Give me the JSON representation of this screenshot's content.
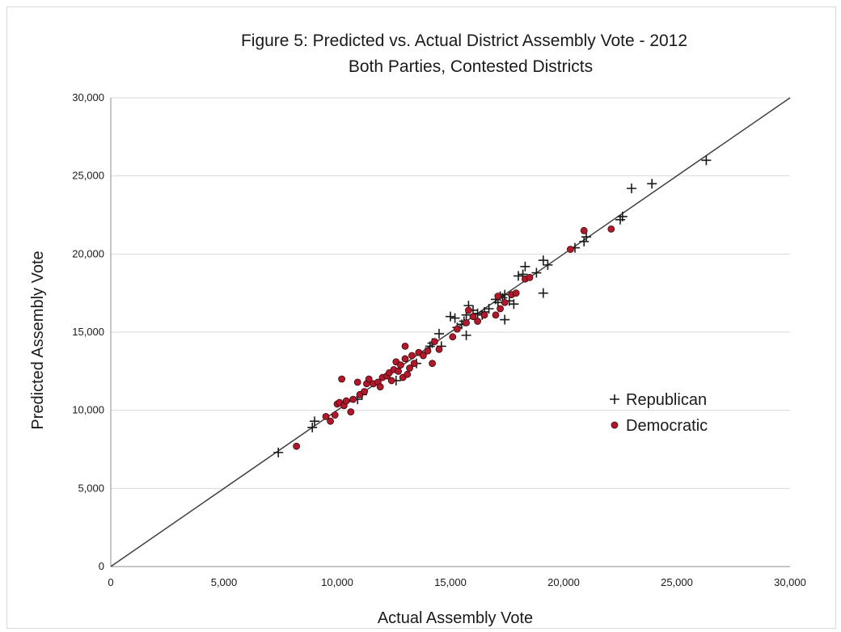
{
  "chart_data": {
    "type": "scatter",
    "title": "Figure 5: Predicted vs. Actual District  Assembly Vote - 2012",
    "subtitle": "Both Parties, Contested Districts",
    "xlabel": "Actual Assembly Vote",
    "ylabel": "Predicted Assembly Vote",
    "xlim": [
      0,
      30000
    ],
    "ylim": [
      0,
      30000
    ],
    "x_ticks": [
      "0",
      "5,000",
      "10,000",
      "15,000",
      "20,000",
      "25,000",
      "30,000"
    ],
    "y_ticks": [
      "0",
      "5,000",
      "10,000",
      "15,000",
      "20,000",
      "25,000",
      "30,000"
    ],
    "grid": "horizontal",
    "legend_position": "right",
    "reference_line": {
      "from": [
        0,
        0
      ],
      "to": [
        30000,
        30000
      ],
      "color": "#404040"
    },
    "series": [
      {
        "name": "Republican",
        "marker": "plus",
        "color": "#1a1a1a",
        "points": [
          [
            7400,
            7300
          ],
          [
            8900,
            8900
          ],
          [
            9000,
            9300
          ],
          [
            10900,
            10700
          ],
          [
            11100,
            11000
          ],
          [
            12600,
            11900
          ],
          [
            13500,
            13000
          ],
          [
            13900,
            13700
          ],
          [
            14100,
            14100
          ],
          [
            14200,
            14300
          ],
          [
            14500,
            14900
          ],
          [
            14600,
            14100
          ],
          [
            15000,
            16000
          ],
          [
            15200,
            15900
          ],
          [
            15300,
            15300
          ],
          [
            15500,
            15500
          ],
          [
            15600,
            15700
          ],
          [
            15700,
            16100
          ],
          [
            15700,
            14800
          ],
          [
            15800,
            16700
          ],
          [
            16000,
            16400
          ],
          [
            16200,
            16200
          ],
          [
            16400,
            16100
          ],
          [
            16500,
            16300
          ],
          [
            16700,
            16500
          ],
          [
            17000,
            17100
          ],
          [
            17100,
            16900
          ],
          [
            17200,
            17300
          ],
          [
            17300,
            17200
          ],
          [
            17400,
            17400
          ],
          [
            17400,
            15800
          ],
          [
            17600,
            17000
          ],
          [
            17800,
            16800
          ],
          [
            18000,
            18600
          ],
          [
            18200,
            18700
          ],
          [
            18300,
            19200
          ],
          [
            18800,
            18800
          ],
          [
            19100,
            19600
          ],
          [
            19300,
            19300
          ],
          [
            19100,
            17500
          ],
          [
            20500,
            20400
          ],
          [
            20900,
            20800
          ],
          [
            21000,
            21100
          ],
          [
            22500,
            22200
          ],
          [
            22600,
            22400
          ],
          [
            23000,
            24200
          ],
          [
            23900,
            24500
          ],
          [
            26300,
            26000
          ]
        ]
      },
      {
        "name": "Democratic",
        "marker": "dot",
        "color": "#b2182b",
        "points": [
          [
            8200,
            7700
          ],
          [
            9500,
            9600
          ],
          [
            9700,
            9300
          ],
          [
            9900,
            9700
          ],
          [
            10000,
            10400
          ],
          [
            10100,
            10500
          ],
          [
            10200,
            12000
          ],
          [
            10300,
            10300
          ],
          [
            10400,
            10600
          ],
          [
            10600,
            9900
          ],
          [
            10700,
            10700
          ],
          [
            10900,
            11800
          ],
          [
            11000,
            11000
          ],
          [
            11200,
            11200
          ],
          [
            11300,
            11700
          ],
          [
            11400,
            12000
          ],
          [
            11600,
            11700
          ],
          [
            11800,
            11800
          ],
          [
            11900,
            11500
          ],
          [
            12000,
            12100
          ],
          [
            12200,
            12200
          ],
          [
            12300,
            12400
          ],
          [
            12400,
            11900
          ],
          [
            12500,
            12600
          ],
          [
            12600,
            13100
          ],
          [
            12700,
            12500
          ],
          [
            12800,
            12900
          ],
          [
            12900,
            12100
          ],
          [
            13000,
            13300
          ],
          [
            13100,
            12300
          ],
          [
            13000,
            14100
          ],
          [
            13200,
            12700
          ],
          [
            13300,
            13500
          ],
          [
            13400,
            13000
          ],
          [
            13600,
            13700
          ],
          [
            13800,
            13500
          ],
          [
            14000,
            13800
          ],
          [
            14200,
            13000
          ],
          [
            14300,
            14400
          ],
          [
            14500,
            13900
          ],
          [
            15100,
            14700
          ],
          [
            15300,
            15200
          ],
          [
            15700,
            15600
          ],
          [
            15800,
            16400
          ],
          [
            16000,
            16000
          ],
          [
            16200,
            15700
          ],
          [
            16500,
            16100
          ],
          [
            17000,
            16100
          ],
          [
            17100,
            17300
          ],
          [
            17200,
            16500
          ],
          [
            17400,
            16900
          ],
          [
            17700,
            17400
          ],
          [
            17900,
            17500
          ],
          [
            18300,
            18400
          ],
          [
            18500,
            18500
          ],
          [
            20300,
            20300
          ],
          [
            20900,
            21500
          ],
          [
            22100,
            21600
          ]
        ]
      }
    ]
  }
}
